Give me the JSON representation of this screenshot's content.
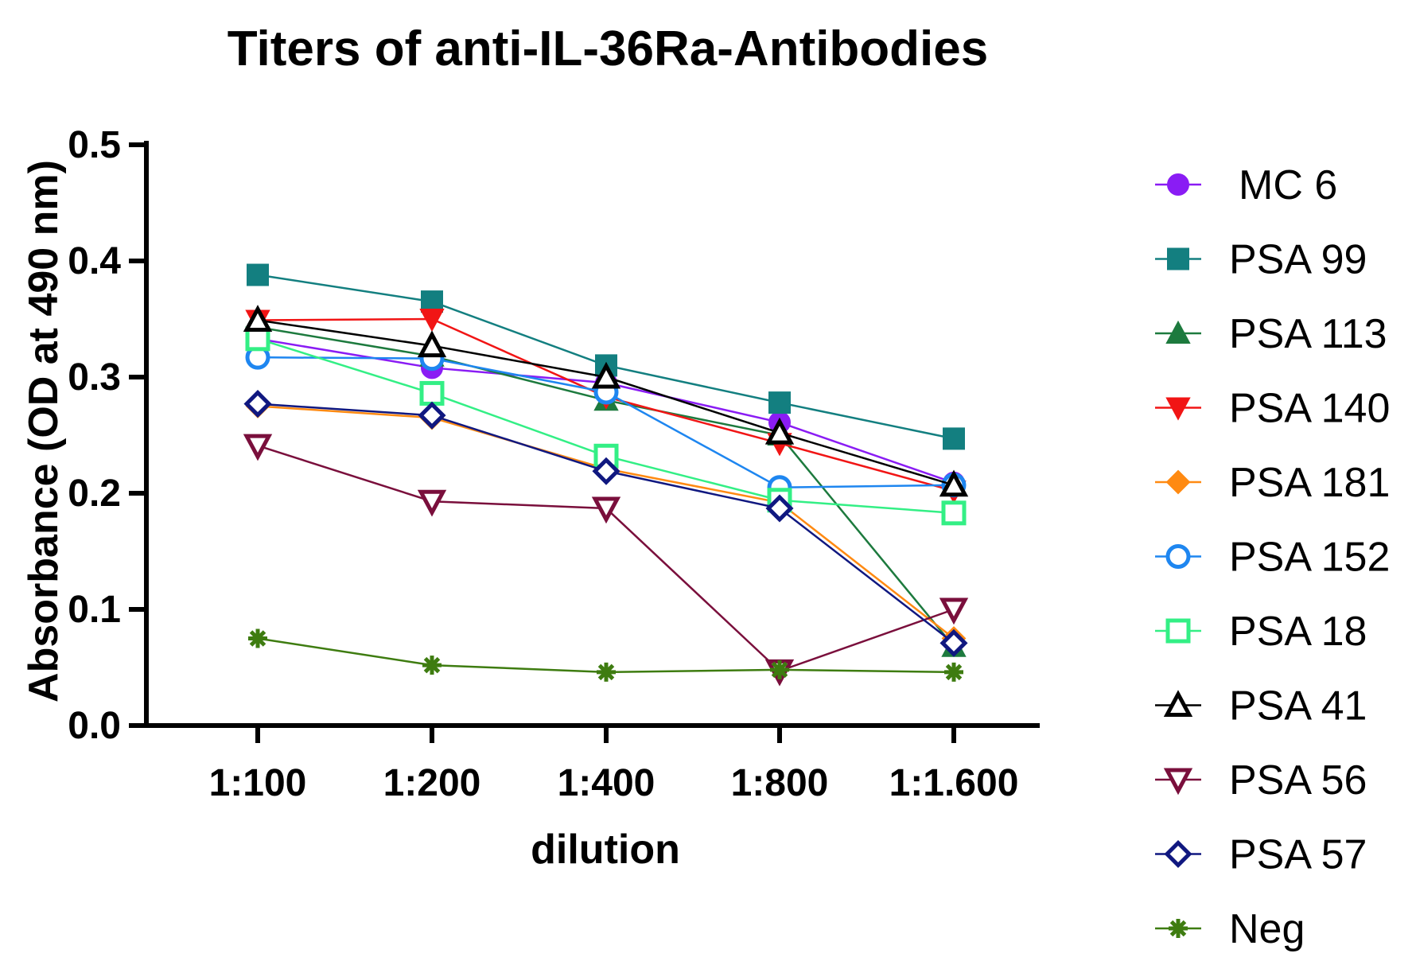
{
  "chart_data": {
    "type": "line",
    "title": "Titers of anti-IL-36Ra-Antibodies",
    "xlabel": "dilution",
    "ylabel": "Absorbance (OD at 490 nm)",
    "categories": [
      "1:100",
      "1:200",
      "1:400",
      "1:800",
      "1:1.600"
    ],
    "ylim": [
      0,
      0.5
    ],
    "yticks": [
      "0.0",
      "0.1",
      "0.2",
      "0.3",
      "0.4",
      "0.5"
    ],
    "grid": false,
    "legend_position": "right",
    "series": [
      {
        "name": "MC 6",
        "color": "#8a1cf4",
        "marker": "circle-filled",
        "values": [
          0.333,
          0.308,
          0.295,
          0.261,
          0.209
        ]
      },
      {
        "name": "PSA 99",
        "color": "#137f80",
        "marker": "square-filled",
        "values": [
          0.388,
          0.365,
          0.31,
          0.278,
          0.247
        ]
      },
      {
        "name": "PSA 113",
        "color": "#1d7a3e",
        "marker": "triangle-up-filled",
        "values": [
          0.343,
          0.318,
          0.28,
          0.25,
          0.068
        ]
      },
      {
        "name": "PSA 140",
        "color": "#f11515",
        "marker": "triangle-down-filled",
        "values": [
          0.349,
          0.35,
          0.283,
          0.243,
          0.202
        ]
      },
      {
        "name": "PSA 181",
        "color": "#ff8a12",
        "marker": "diamond-filled",
        "values": [
          0.275,
          0.265,
          0.221,
          0.192,
          0.075
        ]
      },
      {
        "name": "PSA 152",
        "color": "#1e86f0",
        "marker": "circle-open",
        "values": [
          0.317,
          0.316,
          0.287,
          0.205,
          0.207
        ]
      },
      {
        "name": "PSA 18",
        "color": "#33ef85",
        "marker": "square-open",
        "values": [
          0.333,
          0.286,
          0.232,
          0.194,
          0.183
        ]
      },
      {
        "name": "PSA 41",
        "color": "#000000",
        "marker": "triangle-up-open",
        "values": [
          0.349,
          0.327,
          0.3,
          0.252,
          0.207
        ]
      },
      {
        "name": "PSA 56",
        "color": "#7a0f3c",
        "marker": "triangle-down-open",
        "values": [
          0.241,
          0.193,
          0.187,
          0.047,
          0.1
        ]
      },
      {
        "name": "PSA 57",
        "color": "#101880",
        "marker": "diamond-open",
        "values": [
          0.277,
          0.267,
          0.219,
          0.187,
          0.071
        ]
      },
      {
        "name": "Neg",
        "color": "#3e7c10",
        "marker": "asterisk",
        "values": [
          0.075,
          0.052,
          0.046,
          0.048,
          0.046
        ]
      }
    ]
  }
}
